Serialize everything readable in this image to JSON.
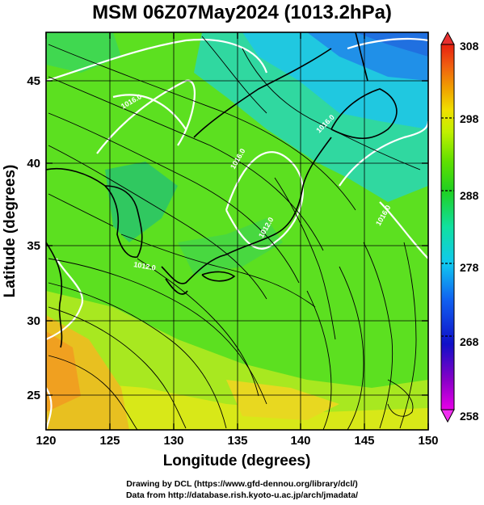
{
  "title": "MSM 06Z07May2024 (1013.2hPa)",
  "x_axis": {
    "label": "Longitude (degrees)",
    "range": [
      120,
      150
    ],
    "ticks": [
      "120",
      "125",
      "130",
      "135",
      "140",
      "145",
      "150"
    ]
  },
  "y_axis": {
    "label": "Latitude  (degrees)",
    "range": [
      22.5,
      47.6
    ],
    "ticks": [
      "25",
      "30",
      "35",
      "40",
      "45"
    ]
  },
  "colorbar": {
    "range": [
      258,
      308
    ],
    "ticks": [
      "258",
      "268",
      "278",
      "288",
      "298",
      "308"
    ],
    "colors": [
      "#e800e8",
      "#8a00c8",
      "#1010c8",
      "#1060f0",
      "#10c8f0",
      "#10e0a0",
      "#20d020",
      "#60e000",
      "#c0f000",
      "#f0e000",
      "#f0a000",
      "#f06010",
      "#e82010"
    ]
  },
  "contour_labels": [
    "1016.0",
    "1012.0",
    "1016.0",
    "1016.0",
    "1012.0",
    "1016.0"
  ],
  "credits": {
    "line1": "Drawing by DCL (https://www.gfd-dennou.org/library/dcl/)",
    "line2": "Data from http://database.rish.kyoto-u.ac.jp/arch/jmadata/"
  }
}
